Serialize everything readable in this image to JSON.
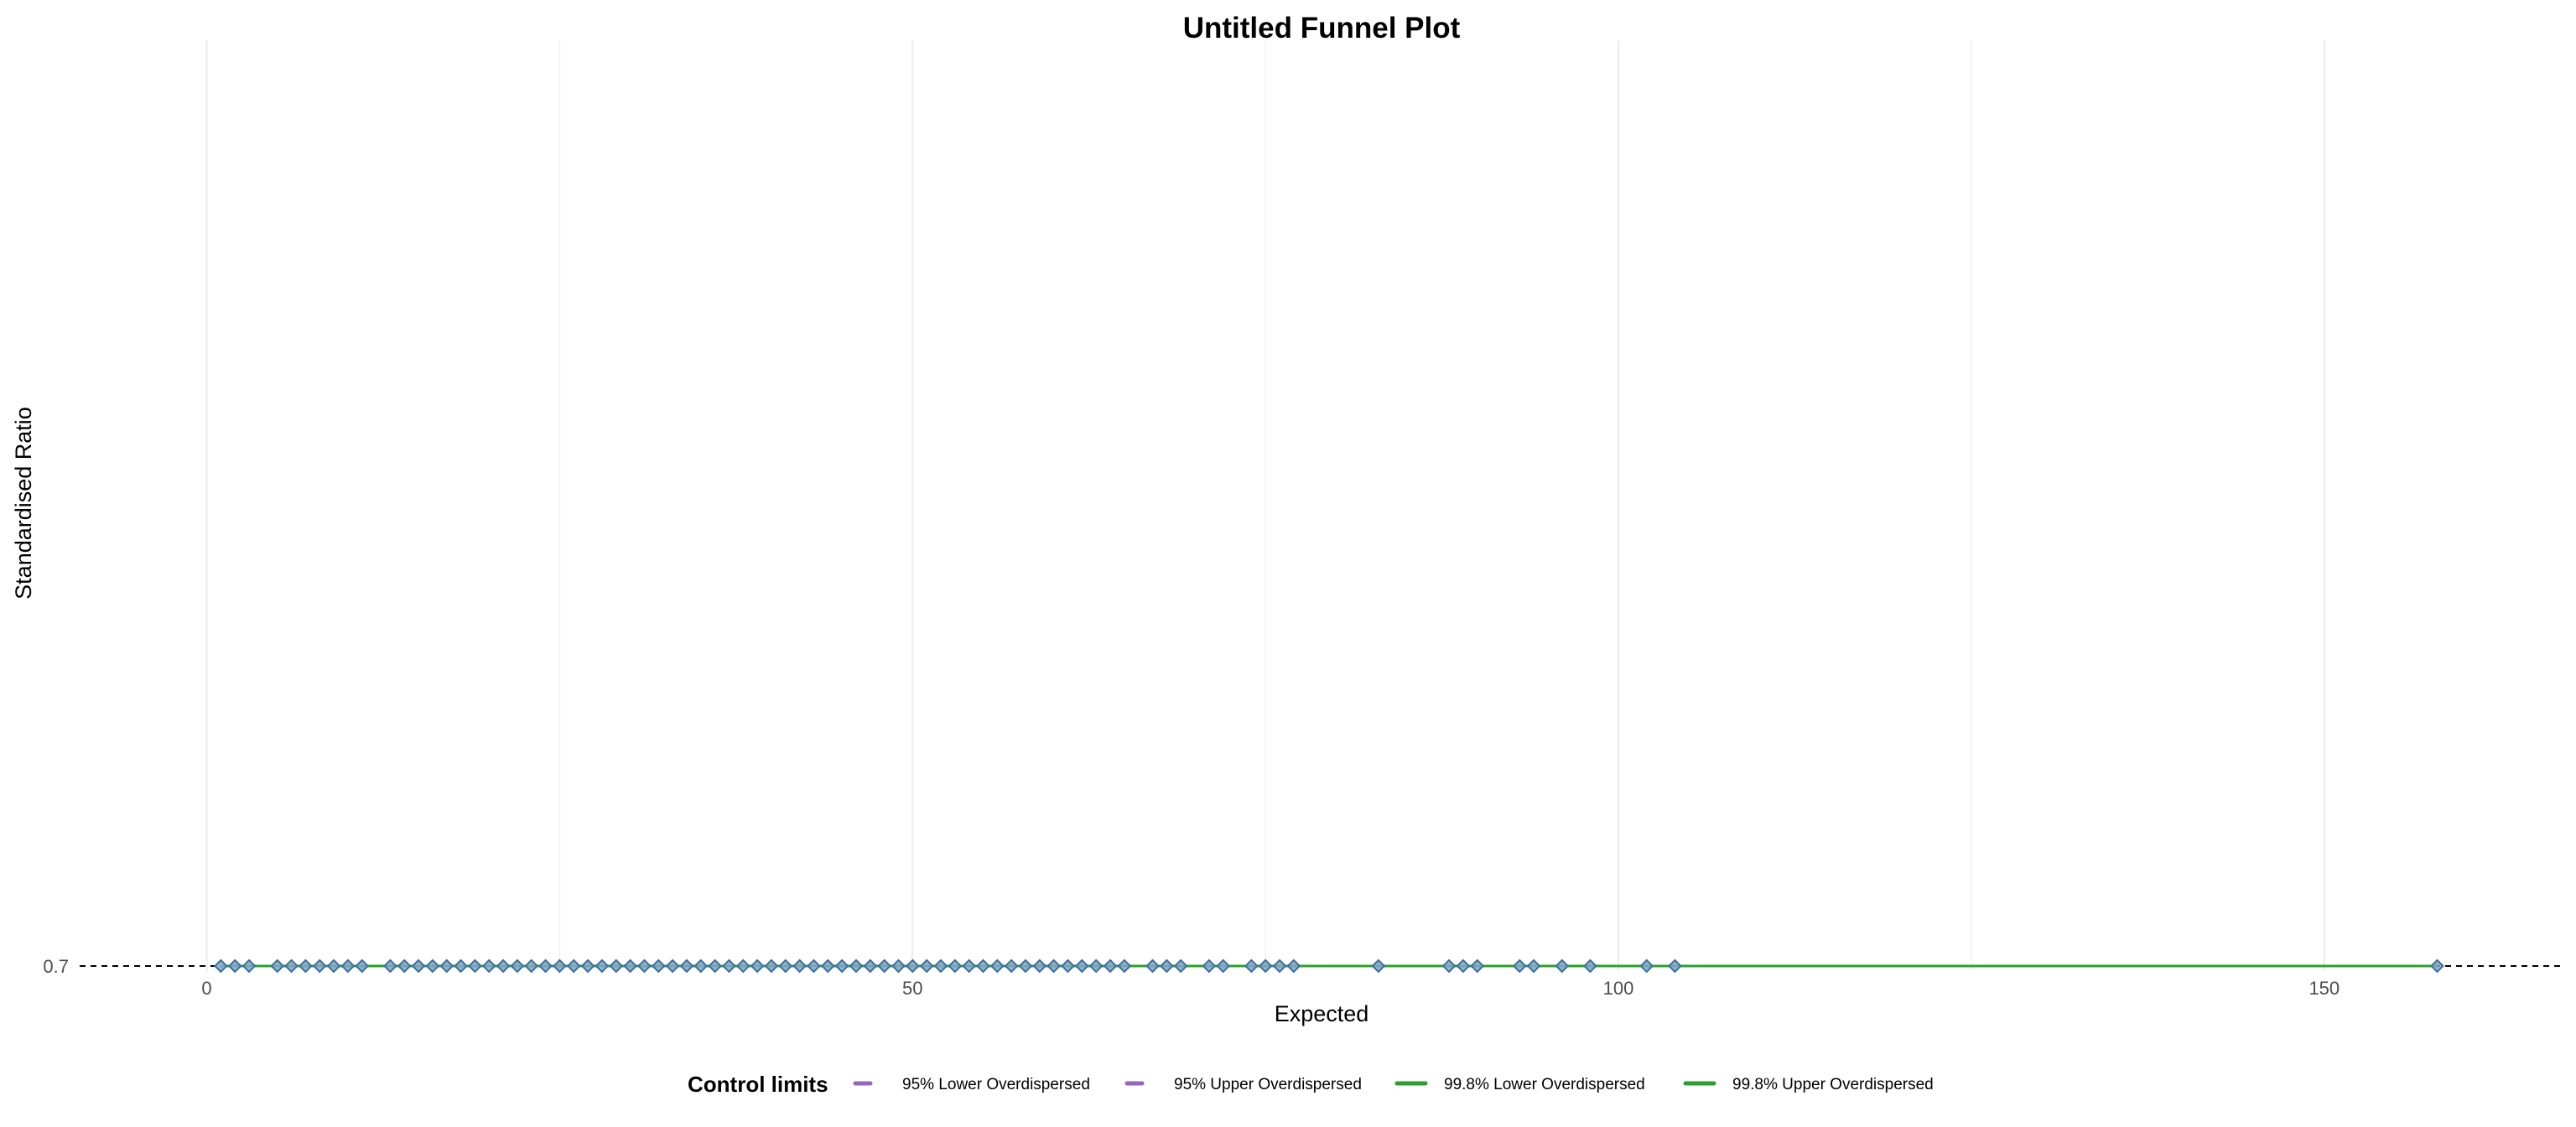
{
  "chart_data": {
    "type": "scatter",
    "title": "Untitled Funnel Plot",
    "xlabel": "Expected",
    "ylabel": "Standardised Ratio",
    "xlim": [
      -9,
      167
    ],
    "x_ticks": [
      0,
      50,
      100,
      150
    ],
    "x_tick_labels": [
      "0",
      "50",
      "100",
      "150"
    ],
    "y_ticks": [
      0.7
    ],
    "y_tick_labels": [
      "0.7"
    ],
    "grid": "vertical major and minor lines only",
    "target_value": 0.7,
    "target_line_style": "dashed black",
    "series": [
      {
        "values": [
          {
            "x": 1.0,
            "y": 0.7
          },
          {
            "x": 2.0,
            "y": 0.7
          },
          {
            "x": 3.0,
            "y": 0.7
          },
          {
            "x": 5.0,
            "y": 0.7
          },
          {
            "x": 6.0,
            "y": 0.7
          },
          {
            "x": 7.0,
            "y": 0.7
          },
          {
            "x": 8.0,
            "y": 0.7
          },
          {
            "x": 9.0,
            "y": 0.7
          },
          {
            "x": 10.0,
            "y": 0.7
          },
          {
            "x": 11.0,
            "y": 0.7
          },
          {
            "x": 13.0,
            "y": 0.7
          },
          {
            "x": 14.0,
            "y": 0.7
          },
          {
            "x": 15.0,
            "y": 0.7
          },
          {
            "x": 16.0,
            "y": 0.7
          },
          {
            "x": 17.0,
            "y": 0.7
          },
          {
            "x": 18.0,
            "y": 0.7
          },
          {
            "x": 19.0,
            "y": 0.7
          },
          {
            "x": 20.0,
            "y": 0.7
          },
          {
            "x": 21.0,
            "y": 0.7
          },
          {
            "x": 22.0,
            "y": 0.7
          },
          {
            "x": 23.0,
            "y": 0.7
          },
          {
            "x": 24.0,
            "y": 0.7
          },
          {
            "x": 25.0,
            "y": 0.7
          },
          {
            "x": 26.0,
            "y": 0.7
          },
          {
            "x": 27.0,
            "y": 0.7
          },
          {
            "x": 28.0,
            "y": 0.7
          },
          {
            "x": 29.0,
            "y": 0.7
          },
          {
            "x": 30.0,
            "y": 0.7
          },
          {
            "x": 31.0,
            "y": 0.7
          },
          {
            "x": 32.0,
            "y": 0.7
          },
          {
            "x": 33.0,
            "y": 0.7
          },
          {
            "x": 34.0,
            "y": 0.7
          },
          {
            "x": 35.0,
            "y": 0.7
          },
          {
            "x": 36.0,
            "y": 0.7
          },
          {
            "x": 37.0,
            "y": 0.7
          },
          {
            "x": 38.0,
            "y": 0.7
          },
          {
            "x": 39.0,
            "y": 0.7
          },
          {
            "x": 40.0,
            "y": 0.7
          },
          {
            "x": 41.0,
            "y": 0.7
          },
          {
            "x": 42.0,
            "y": 0.7
          },
          {
            "x": 43.0,
            "y": 0.7
          },
          {
            "x": 44.0,
            "y": 0.7
          },
          {
            "x": 45.0,
            "y": 0.7
          },
          {
            "x": 46.0,
            "y": 0.7
          },
          {
            "x": 47.0,
            "y": 0.7
          },
          {
            "x": 48.0,
            "y": 0.7
          },
          {
            "x": 49.0,
            "y": 0.7
          },
          {
            "x": 50.0,
            "y": 0.7
          },
          {
            "x": 51.0,
            "y": 0.7
          },
          {
            "x": 52.0,
            "y": 0.7
          },
          {
            "x": 53.0,
            "y": 0.7
          },
          {
            "x": 54.0,
            "y": 0.7
          },
          {
            "x": 55.0,
            "y": 0.7
          },
          {
            "x": 56.0,
            "y": 0.7
          },
          {
            "x": 57.0,
            "y": 0.7
          },
          {
            "x": 58.0,
            "y": 0.7
          },
          {
            "x": 59.0,
            "y": 0.7
          },
          {
            "x": 60.0,
            "y": 0.7
          },
          {
            "x": 61.0,
            "y": 0.7
          },
          {
            "x": 62.0,
            "y": 0.7
          },
          {
            "x": 63.0,
            "y": 0.7
          },
          {
            "x": 64.0,
            "y": 0.7
          },
          {
            "x": 65.0,
            "y": 0.7
          },
          {
            "x": 67.0,
            "y": 0.7
          },
          {
            "x": 68.0,
            "y": 0.7
          },
          {
            "x": 69.0,
            "y": 0.7
          },
          {
            "x": 71.0,
            "y": 0.7
          },
          {
            "x": 72.0,
            "y": 0.7
          },
          {
            "x": 74.0,
            "y": 0.7
          },
          {
            "x": 75.0,
            "y": 0.7
          },
          {
            "x": 76.0,
            "y": 0.7
          },
          {
            "x": 77.0,
            "y": 0.7
          },
          {
            "x": 83.0,
            "y": 0.7
          },
          {
            "x": 88.0,
            "y": 0.7
          },
          {
            "x": 89.0,
            "y": 0.7
          },
          {
            "x": 90.0,
            "y": 0.7
          },
          {
            "x": 93.0,
            "y": 0.7
          },
          {
            "x": 94.0,
            "y": 0.7
          },
          {
            "x": 96.0,
            "y": 0.7
          },
          {
            "x": 98.0,
            "y": 0.7
          },
          {
            "x": 102.0,
            "y": 0.7
          },
          {
            "x": 104.0,
            "y": 0.7
          },
          {
            "x": 158.0,
            "y": 0.7
          }
        ]
      }
    ],
    "limit_lines": [
      {
        "name": "95% Lower Overdispersed",
        "color": "#9467bd",
        "x": [
          1,
          158
        ],
        "y": [
          0.7,
          0.7
        ]
      },
      {
        "name": "95% Upper Overdispersed",
        "color": "#9467bd",
        "x": [
          1,
          158
        ],
        "y": [
          0.7,
          0.7
        ]
      },
      {
        "name": "99.8% Lower Overdispersed",
        "color": "#2ca02c",
        "x": [
          1,
          158
        ],
        "y": [
          0.7,
          0.7
        ]
      },
      {
        "name": "99.8% Upper Overdispersed",
        "color": "#2ca02c",
        "x": [
          1,
          158
        ],
        "y": [
          0.7,
          0.7
        ]
      }
    ],
    "legend": {
      "title": "Control limits",
      "position": "bottom",
      "entries": [
        "95% Lower Overdispersed",
        "95% Upper Overdispersed",
        "99.8% Lower Overdispersed",
        "99.8% Upper Overdispersed"
      ]
    },
    "point_color": "#7fa7c9",
    "point_edge_color": "#3d6f99"
  }
}
